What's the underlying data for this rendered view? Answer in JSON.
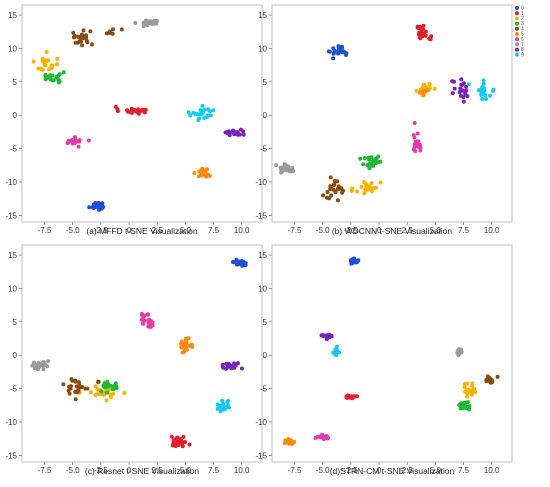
{
  "colors": {
    "c0": "#1f4fd6",
    "c1": "#e0202a",
    "c2": "#f5b200",
    "c3": "#20b832",
    "c4": "#8a4a10",
    "c5": "#ff8a10",
    "c6": "#e23ca8",
    "c7": "#9a9a9a",
    "c8": "#7a22b8",
    "c9": "#18c9ee"
  },
  "legend": {
    "labels": [
      "0",
      "1",
      "2",
      "3",
      "4",
      "5",
      "6",
      "7",
      "8",
      "9"
    ],
    "colors": [
      "#1f4fd6",
      "#e0202a",
      "#f5b200",
      "#20b832",
      "#8a4a10",
      "#ff8a10",
      "#e23ca8",
      "#9a9a9a",
      "#7a22b8",
      "#18c9ee"
    ],
    "placement": "top-right"
  },
  "chart_data": [
    {
      "type": "scatter",
      "title": "(a) MFFD t-SNE Visualization",
      "xlim": [
        -9.5,
        11.8
      ],
      "ylim": [
        -16,
        16.5
      ],
      "xticks": [
        "-7.5",
        "-5.0",
        "-2.5",
        "0",
        "2.5",
        "5.0",
        "7.5",
        "10.0"
      ],
      "xtick_values": [
        -7.5,
        -5.0,
        -2.5,
        0,
        2.5,
        5.0,
        7.5,
        10.0
      ],
      "yticks": [
        "15",
        "10",
        "5",
        "0",
        "-5",
        "-10",
        "-15"
      ],
      "ytick_values": [
        15,
        10,
        5,
        0,
        -5,
        -10,
        -15
      ],
      "clusters": [
        {
          "color": "c0",
          "x": -2.8,
          "y": -13.6,
          "sx": 0.75,
          "sy": 0.55,
          "n": 24
        },
        {
          "color": "c1",
          "x": 0.3,
          "y": 0.7,
          "sx": 1.1,
          "sy": 0.5,
          "n": 22
        },
        {
          "color": "c2",
          "x": -7.3,
          "y": 7.8,
          "sx": 0.9,
          "sy": 1.2,
          "n": 22
        },
        {
          "color": "c3",
          "x": -6.8,
          "y": 5.6,
          "sx": 0.9,
          "sy": 0.9,
          "n": 20
        },
        {
          "color": "c4",
          "x": -4.3,
          "y": 11.6,
          "sx": 1.0,
          "sy": 1.0,
          "n": 22
        },
        {
          "color": "c4",
          "x": -2.0,
          "y": 12.5,
          "sx": 1.2,
          "sy": 0.4,
          "n": 7
        },
        {
          "color": "c5",
          "x": 6.6,
          "y": -8.6,
          "sx": 0.6,
          "sy": 0.8,
          "n": 22
        },
        {
          "color": "c6",
          "x": -4.8,
          "y": -4.0,
          "sx": 0.7,
          "sy": 0.5,
          "n": 20
        },
        {
          "color": "c7",
          "x": 1.8,
          "y": 13.9,
          "sx": 0.8,
          "sy": 0.4,
          "n": 24
        },
        {
          "color": "c8",
          "x": 9.3,
          "y": -2.6,
          "sx": 0.9,
          "sy": 0.6,
          "n": 22
        },
        {
          "color": "c9",
          "x": 6.6,
          "y": 0.2,
          "sx": 1.1,
          "sy": 0.8,
          "n": 24
        }
      ]
    },
    {
      "type": "scatter",
      "title": "(b) WDCNN t-SNE Visualization",
      "xlim": [
        -9.5,
        11.8
      ],
      "ylim": [
        -16,
        16.5
      ],
      "xticks": [
        "-7.5",
        "-5.0",
        "-2.5",
        "0",
        "2.5",
        "5.0",
        "7.5",
        "10.0"
      ],
      "xtick_values": [
        -7.5,
        -5.0,
        -2.5,
        0,
        2.5,
        5.0,
        7.5,
        10.0
      ],
      "yticks": [
        "15",
        "10",
        "5",
        "0",
        "-5",
        "-10",
        "-15"
      ],
      "ytick_values": [
        15,
        10,
        5,
        0,
        -5,
        -10,
        -15
      ],
      "clusters": [
        {
          "color": "c0",
          "x": -3.5,
          "y": 9.5,
          "sx": 0.7,
          "sy": 0.8,
          "n": 24
        },
        {
          "color": "c1",
          "x": 3.9,
          "y": 12.5,
          "sx": 0.6,
          "sy": 1.2,
          "n": 24
        },
        {
          "color": "c2",
          "x": 4.1,
          "y": 3.8,
          "sx": 0.6,
          "sy": 0.8,
          "n": 16
        },
        {
          "color": "c2",
          "x": -1.0,
          "y": -10.8,
          "sx": 1.0,
          "sy": 1.2,
          "n": 24
        },
        {
          "color": "c3",
          "x": -0.6,
          "y": -7.0,
          "sx": 0.8,
          "sy": 1.1,
          "n": 24
        },
        {
          "color": "c4",
          "x": -4.0,
          "y": -11.2,
          "sx": 1.1,
          "sy": 1.3,
          "n": 26
        },
        {
          "color": "c5",
          "x": 3.9,
          "y": 3.6,
          "sx": 0.4,
          "sy": 0.6,
          "n": 8
        },
        {
          "color": "c6",
          "x": 3.4,
          "y": -3.8,
          "sx": 0.4,
          "sy": 1.7,
          "n": 20
        },
        {
          "color": "c7",
          "x": -8.0,
          "y": -8.0,
          "sx": 0.8,
          "sy": 0.6,
          "n": 24
        },
        {
          "color": "c8",
          "x": 7.3,
          "y": 3.3,
          "sx": 0.8,
          "sy": 1.7,
          "n": 20
        },
        {
          "color": "c9",
          "x": 9.3,
          "y": 3.8,
          "sx": 0.9,
          "sy": 1.4,
          "n": 24
        }
      ]
    },
    {
      "type": "scatter",
      "title": "(c) Resnet t-SNE Visualization",
      "xlim": [
        -9.5,
        11.8
      ],
      "ylim": [
        -16,
        16.5
      ],
      "xticks": [
        "-7.5",
        "-5.0",
        "-2.5",
        "0",
        "2.5",
        "5.0",
        "7.5",
        "10.0"
      ],
      "xtick_values": [
        -7.5,
        -5.0,
        -2.5,
        0,
        2.5,
        5.0,
        7.5,
        10.0
      ],
      "yticks": [
        "15",
        "10",
        "5",
        "0",
        "-5",
        "-10",
        "-15"
      ],
      "ytick_values": [
        15,
        10,
        5,
        0,
        -5,
        -10,
        -15
      ],
      "clusters": [
        {
          "color": "c0",
          "x": 10.0,
          "y": 13.8,
          "sx": 0.6,
          "sy": 0.4,
          "n": 24
        },
        {
          "color": "c1",
          "x": 4.4,
          "y": -13.0,
          "sx": 0.6,
          "sy": 0.8,
          "n": 24
        },
        {
          "color": "c2",
          "x": -2.3,
          "y": -5.6,
          "sx": 1.3,
          "sy": 1.0,
          "n": 26
        },
        {
          "color": "c3",
          "x": -1.8,
          "y": -4.7,
          "sx": 1.1,
          "sy": 0.8,
          "n": 22
        },
        {
          "color": "c4",
          "x": -4.6,
          "y": -4.6,
          "sx": 1.2,
          "sy": 1.1,
          "n": 24
        },
        {
          "color": "c5",
          "x": 5.0,
          "y": 1.5,
          "sx": 0.6,
          "sy": 1.0,
          "n": 24
        },
        {
          "color": "c6",
          "x": 1.5,
          "y": 5.3,
          "sx": 0.5,
          "sy": 1.0,
          "n": 22
        },
        {
          "color": "c7",
          "x": -7.8,
          "y": -1.6,
          "sx": 0.8,
          "sy": 0.5,
          "n": 24
        },
        {
          "color": "c8",
          "x": 9.0,
          "y": -1.6,
          "sx": 0.8,
          "sy": 0.6,
          "n": 22
        },
        {
          "color": "c9",
          "x": 8.4,
          "y": -7.6,
          "sx": 0.6,
          "sy": 0.9,
          "n": 20
        }
      ]
    },
    {
      "type": "scatter",
      "title": "(d)STRN-CM t-SNE Visualization",
      "xlim": [
        -9.5,
        11.8
      ],
      "ylim": [
        -16,
        16.5
      ],
      "xticks": [
        "-7.5",
        "-5.0",
        "-2.5",
        "0",
        "2.5",
        "5.0",
        "7.5",
        "10.0"
      ],
      "xtick_values": [
        -7.5,
        -5.0,
        -2.5,
        0,
        2.5,
        5.0,
        7.5,
        10.0
      ],
      "yticks": [
        "15",
        "10",
        "5",
        "0",
        "-5",
        "-10",
        "-15"
      ],
      "ytick_values": [
        15,
        10,
        5,
        0,
        -5,
        -10,
        -15
      ],
      "clusters": [
        {
          "color": "c0",
          "x": -2.2,
          "y": 14.1,
          "sx": 0.3,
          "sy": 0.3,
          "n": 22
        },
        {
          "color": "c1",
          "x": -2.5,
          "y": -6.2,
          "sx": 0.35,
          "sy": 0.35,
          "n": 22
        },
        {
          "color": "c2",
          "x": 8.0,
          "y": -5.2,
          "sx": 0.6,
          "sy": 1.0,
          "n": 22
        },
        {
          "color": "c3",
          "x": 7.6,
          "y": -7.6,
          "sx": 0.6,
          "sy": 0.5,
          "n": 22
        },
        {
          "color": "c4",
          "x": 9.9,
          "y": -3.6,
          "sx": 0.5,
          "sy": 0.6,
          "n": 14
        },
        {
          "color": "c5",
          "x": -8.0,
          "y": -13.0,
          "sx": 0.45,
          "sy": 0.3,
          "n": 20
        },
        {
          "color": "c6",
          "x": -5.0,
          "y": -12.3,
          "sx": 0.5,
          "sy": 0.3,
          "n": 18
        },
        {
          "color": "c7",
          "x": 7.2,
          "y": 0.6,
          "sx": 0.3,
          "sy": 0.4,
          "n": 16
        },
        {
          "color": "c8",
          "x": -4.6,
          "y": 2.8,
          "sx": 0.45,
          "sy": 0.3,
          "n": 22
        },
        {
          "color": "c9",
          "x": -3.8,
          "y": 0.5,
          "sx": 0.35,
          "sy": 0.5,
          "n": 18
        }
      ]
    }
  ]
}
